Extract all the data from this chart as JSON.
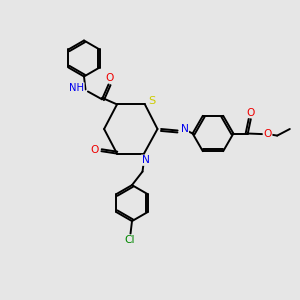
{
  "background_color": "#e6e6e6",
  "atom_colors": {
    "C": "#000000",
    "N": "#0000ee",
    "O": "#ee0000",
    "S": "#cccc00",
    "Cl": "#008800",
    "H": "#008888"
  },
  "figsize": [
    3.0,
    3.0
  ],
  "dpi": 100
}
